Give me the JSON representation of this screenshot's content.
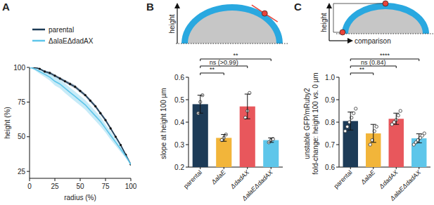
{
  "chart_data": [
    {
      "type": "line",
      "panel": "A",
      "xlabel": "radius (%)",
      "ylabel": "height (%)",
      "x": [
        0,
        5,
        10,
        15,
        20,
        25,
        30,
        35,
        40,
        45,
        50,
        55,
        60,
        65,
        70,
        75,
        80,
        85,
        90,
        95,
        100
      ],
      "series": [
        {
          "name": "parental",
          "color": "#1d3b57",
          "marker": "circle",
          "line_style": "solid",
          "values": [
            100,
            100,
            99,
            97,
            96,
            94,
            92,
            90,
            88,
            86,
            83,
            80,
            76,
            72,
            67,
            62,
            56,
            50,
            44,
            37,
            30
          ],
          "error": [
            0,
            0.5,
            0.5,
            0.8,
            1,
            1,
            1,
            1,
            1.2,
            1.2,
            1.2,
            1.2,
            1.2,
            1.2,
            1.2,
            1.2,
            1.2,
            1,
            1,
            0.8,
            0
          ]
        },
        {
          "name": "ΔalaEΔdadAX",
          "color": "#5ec6ea",
          "line_style": "solid",
          "values": [
            100,
            99,
            97,
            95,
            93,
            90,
            88,
            85,
            82,
            79,
            76,
            73,
            69,
            65,
            61,
            56,
            51,
            46,
            41,
            36,
            30
          ],
          "error": [
            0,
            1,
            1.5,
            2,
            2.5,
            3,
            3,
            3.5,
            3.5,
            3.5,
            3.5,
            3.5,
            3.5,
            3.5,
            3.5,
            3,
            3,
            2.5,
            2,
            1.5,
            0
          ]
        }
      ],
      "xlim": [
        0,
        100
      ],
      "xticks": [
        0,
        25,
        50,
        75,
        100
      ],
      "ylim": [
        20,
        100
      ],
      "yticks": [
        25,
        50,
        75,
        100
      ],
      "legend": "top-left"
    },
    {
      "type": "bar",
      "panel": "B",
      "ylabel": "slope at height 100 µm",
      "schematic": {
        "labels": [
          "height"
        ]
      },
      "categories": [
        "parental",
        "ΔalaE",
        "ΔdadAX",
        "ΔalaEΔdadAX"
      ],
      "colors": [
        "#1d3b57",
        "#f2b53a",
        "#e8575c",
        "#5ec6ea"
      ],
      "values": [
        0.48,
        0.33,
        0.47,
        0.32
      ],
      "error": [
        0.04,
        0.015,
        0.055,
        0.01
      ],
      "points": [
        [
          0.44,
          0.49,
          0.52
        ],
        [
          0.32,
          0.33,
          0.345
        ],
        [
          0.42,
          0.45,
          0.53
        ],
        [
          0.31,
          0.32,
          0.325
        ]
      ],
      "comparisons": [
        {
          "from": "parental",
          "to": "ΔalaE",
          "label": "**"
        },
        {
          "from": "parental",
          "to": "ΔdadAX",
          "label": "ns (>0.99)"
        },
        {
          "from": "parental",
          "to": "ΔalaEΔdadAX",
          "label": "**"
        }
      ],
      "ylim": [
        0.2,
        0.6
      ],
      "yticks": [
        0.2,
        0.3,
        0.4,
        0.5,
        0.6
      ]
    },
    {
      "type": "bar",
      "panel": "C",
      "ylabel": [
        "unstable GFP/mRuby2",
        "fold-change: height 100 vs. 0 µm"
      ],
      "schematic": {
        "labels": [
          "height",
          "comparison"
        ]
      },
      "categories": [
        "parental",
        "ΔalaE",
        "ΔdadAX",
        "ΔalaEΔdadAX"
      ],
      "colors": [
        "#1d3b57",
        "#f2b53a",
        "#e8575c",
        "#5ec6ea"
      ],
      "values": [
        0.805,
        0.75,
        0.815,
        0.728
      ],
      "error": [
        0.04,
        0.04,
        0.025,
        0.02
      ],
      "points": [
        [
          0.76,
          0.78,
          0.8,
          0.82,
          0.84,
          0.86
        ],
        [
          0.7,
          0.72,
          0.76,
          0.78
        ],
        [
          0.79,
          0.8,
          0.81,
          0.83,
          0.85
        ],
        [
          0.7,
          0.71,
          0.72,
          0.73,
          0.74,
          0.75
        ]
      ],
      "comparisons": [
        {
          "from": "parental",
          "to": "ΔalaE",
          "label": "**"
        },
        {
          "from": "parental",
          "to": "ΔdadAX",
          "label": "ns (0.84)"
        },
        {
          "from": "parental",
          "to": "ΔalaEΔdadAX",
          "label": "****"
        }
      ],
      "ylim": [
        0.6,
        1
      ],
      "yticks": [
        0.6,
        0.7,
        0.8,
        0.9,
        {
          "value": 1,
          "label": "1.0"
        }
      ]
    }
  ]
}
